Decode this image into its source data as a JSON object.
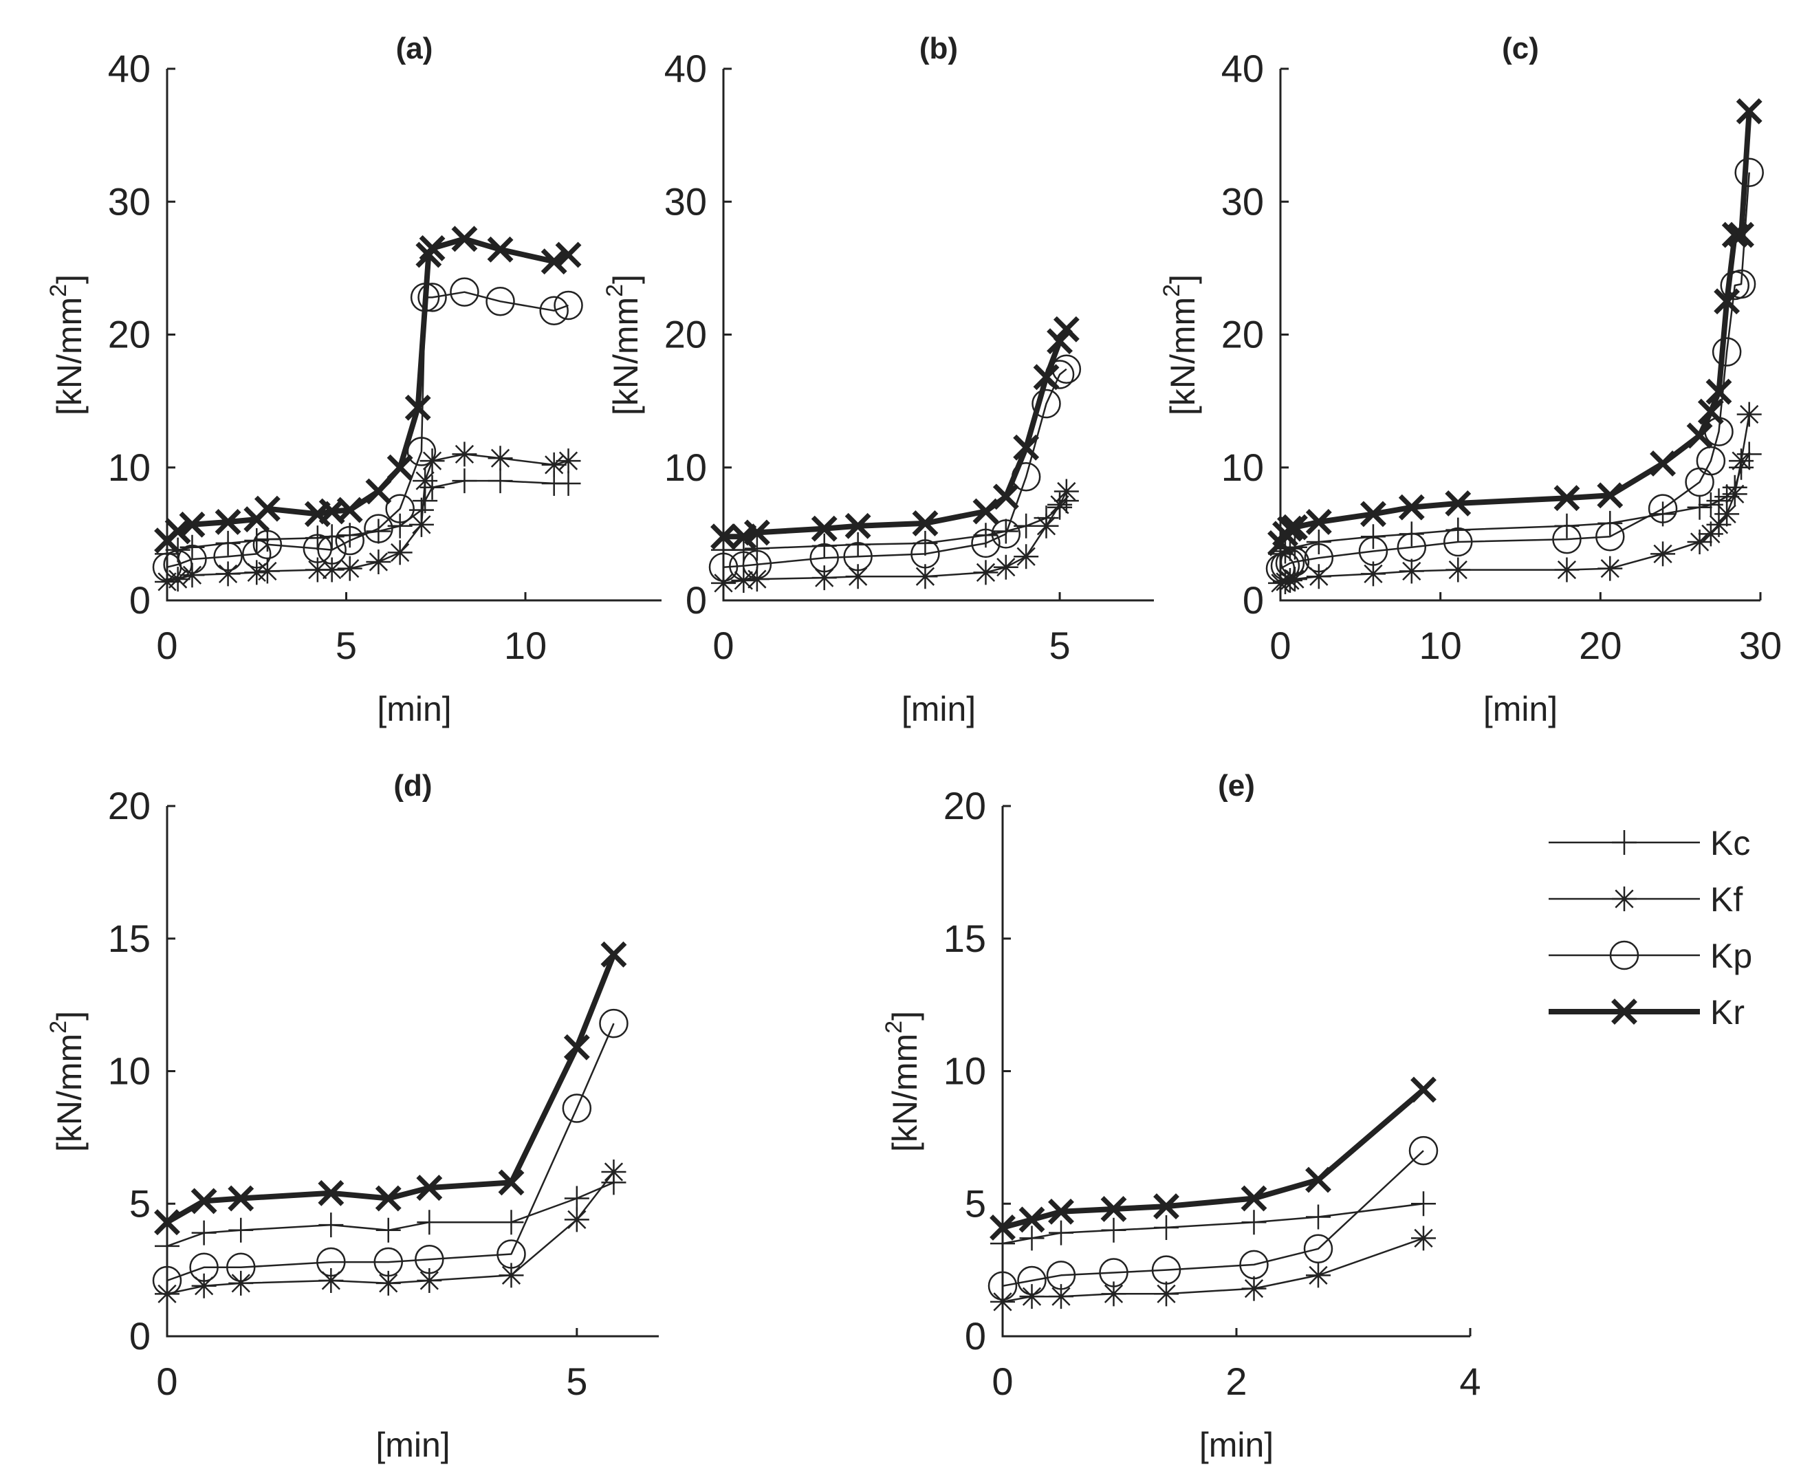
{
  "legend": {
    "position": "right of panel (e)",
    "entries": [
      {
        "key": "Kc",
        "label": "Kc",
        "marker": "plus",
        "line": "thin"
      },
      {
        "key": "Kf",
        "label": "Kf",
        "marker": "asterisk",
        "line": "thin"
      },
      {
        "key": "Kp",
        "label": "Kp",
        "marker": "circle",
        "line": "thin"
      },
      {
        "key": "Kr",
        "label": "Kr",
        "marker": "x",
        "line": "thick"
      }
    ]
  },
  "chart_data": [
    {
      "type": "line",
      "title": "(a)",
      "xlabel": "[min]",
      "ylabel": "[kN/mm",
      "ylabel_superscript": "2",
      "ylabel_close": "]",
      "xlim": [
        0,
        13.8
      ],
      "ylim": [
        0,
        40
      ],
      "xticks": [
        0,
        5,
        10
      ],
      "yticks": [
        0,
        10,
        20,
        30,
        40
      ],
      "grid": false,
      "series": [
        {
          "key": "Kc",
          "x": [
            0,
            0.3,
            0.7,
            1.7,
            2.5,
            2.8,
            4.2,
            4.6,
            5.1,
            5.9,
            6.5,
            7.1,
            7.2,
            7.4,
            8.3,
            9.3,
            10.8,
            11.2
          ],
          "y": [
            3.5,
            3.8,
            4.0,
            4.3,
            4.5,
            4.6,
            4.7,
            4.8,
            4.9,
            5.2,
            5.6,
            6.8,
            7.5,
            8.5,
            9.0,
            9.0,
            8.8,
            8.8
          ]
        },
        {
          "key": "Kf",
          "x": [
            0,
            0.3,
            0.7,
            1.7,
            2.5,
            2.8,
            4.2,
            4.6,
            5.1,
            5.9,
            6.5,
            7.1,
            7.2,
            7.4,
            8.3,
            9.3,
            10.8,
            11.2
          ],
          "y": [
            1.4,
            1.6,
            1.9,
            2.0,
            2.1,
            2.2,
            2.3,
            2.3,
            2.4,
            2.9,
            3.6,
            5.7,
            9.0,
            10.5,
            11.0,
            10.7,
            10.2,
            10.5
          ]
        },
        {
          "key": "Kp",
          "x": [
            0,
            0.3,
            0.7,
            1.7,
            2.5,
            2.8,
            4.2,
            4.6,
            5.1,
            5.9,
            6.5,
            7.1,
            7.2,
            7.4,
            8.3,
            9.3,
            10.8,
            11.2
          ],
          "y": [
            2.5,
            2.7,
            3.1,
            3.3,
            3.5,
            4.2,
            3.9,
            3.8,
            4.5,
            5.4,
            6.9,
            11.2,
            22.8,
            22.8,
            23.2,
            22.5,
            21.8,
            22.2
          ]
        },
        {
          "key": "Kr",
          "x": [
            0,
            0.3,
            0.7,
            1.7,
            2.5,
            2.8,
            4.2,
            4.6,
            5.1,
            5.9,
            6.5,
            7.0,
            7.3,
            7.4,
            8.3,
            9.3,
            10.8,
            11.2
          ],
          "y": [
            4.5,
            5.2,
            5.7,
            5.9,
            6.1,
            6.9,
            6.5,
            6.7,
            6.8,
            8.2,
            10.0,
            14.5,
            26.0,
            26.5,
            27.2,
            26.4,
            25.5,
            26.0
          ]
        }
      ]
    },
    {
      "type": "line",
      "title": "(b)",
      "xlabel": "[min]",
      "ylabel": "[kN/mm",
      "ylabel_superscript": "2",
      "ylabel_close": "]",
      "xlim": [
        0,
        6.4
      ],
      "ylim": [
        0,
        40
      ],
      "xticks": [
        0,
        5
      ],
      "yticks": [
        0,
        10,
        20,
        30,
        40
      ],
      "grid": false,
      "series": [
        {
          "key": "Kc",
          "x": [
            0,
            0.3,
            0.5,
            1.5,
            2.0,
            3.0,
            3.9,
            4.2,
            4.5,
            4.8,
            5.0,
            5.1
          ],
          "y": [
            3.8,
            3.8,
            3.9,
            4.1,
            4.2,
            4.3,
            4.9,
            5.2,
            5.6,
            6.2,
            7.0,
            7.5
          ]
        },
        {
          "key": "Kf",
          "x": [
            0,
            0.3,
            0.5,
            1.5,
            2.0,
            3.0,
            3.9,
            4.2,
            4.5,
            4.8,
            5.0,
            5.1
          ],
          "y": [
            1.3,
            1.5,
            1.6,
            1.7,
            1.8,
            1.8,
            2.1,
            2.5,
            3.3,
            5.6,
            7.2,
            8.2
          ]
        },
        {
          "key": "Kp",
          "x": [
            0,
            0.3,
            0.5,
            1.5,
            2.0,
            3.0,
            3.9,
            4.2,
            4.5,
            4.8,
            5.0,
            5.1
          ],
          "y": [
            2.5,
            2.6,
            2.7,
            3.2,
            3.3,
            3.5,
            4.3,
            5.0,
            9.3,
            14.8,
            17.0,
            17.4
          ]
        },
        {
          "key": "Kr",
          "x": [
            0,
            0.3,
            0.5,
            1.5,
            2.0,
            3.0,
            3.9,
            4.2,
            4.5,
            4.8,
            5.0,
            5.1
          ],
          "y": [
            4.8,
            4.8,
            5.1,
            5.4,
            5.6,
            5.8,
            6.7,
            7.8,
            11.5,
            16.8,
            19.5,
            20.4
          ]
        }
      ]
    },
    {
      "type": "line",
      "title": "(c)",
      "xlabel": "[min]",
      "ylabel": "[kN/mm",
      "ylabel_superscript": "2",
      "ylabel_close": "]",
      "xlim": [
        0,
        30
      ],
      "ylim": [
        0,
        40
      ],
      "xticks": [
        0,
        10,
        20,
        30
      ],
      "yticks": [
        0,
        10,
        20,
        30,
        40
      ],
      "grid": false,
      "series": [
        {
          "key": "Kc",
          "x": [
            0,
            0.3,
            0.6,
            0.9,
            2.4,
            5.8,
            8.2,
            11.1,
            17.9,
            20.6,
            23.9,
            26.2,
            26.9,
            27.4,
            27.9,
            28.4,
            28.8,
            29.3
          ],
          "y": [
            3.5,
            3.7,
            3.9,
            4.0,
            4.4,
            4.8,
            5.0,
            5.3,
            5.6,
            5.8,
            6.5,
            7.0,
            7.2,
            7.5,
            7.8,
            8.5,
            10.0,
            11.0
          ]
        },
        {
          "key": "Kf",
          "x": [
            0,
            0.3,
            0.6,
            0.9,
            2.4,
            5.8,
            8.2,
            11.1,
            17.9,
            20.6,
            23.9,
            26.2,
            26.9,
            27.4,
            27.9,
            28.4,
            28.8,
            29.3
          ],
          "y": [
            1.3,
            1.4,
            1.5,
            1.6,
            1.8,
            2.0,
            2.2,
            2.3,
            2.3,
            2.4,
            3.5,
            4.4,
            5.0,
            5.7,
            6.5,
            8.0,
            10.5,
            14.0
          ]
        },
        {
          "key": "Kp",
          "x": [
            0,
            0.3,
            0.6,
            0.9,
            2.4,
            5.8,
            8.2,
            11.1,
            17.9,
            20.6,
            23.9,
            26.2,
            26.9,
            27.4,
            27.9,
            28.4,
            28.8,
            29.3
          ],
          "y": [
            2.4,
            2.6,
            2.8,
            2.9,
            3.2,
            3.7,
            4.0,
            4.4,
            4.6,
            4.8,
            6.9,
            8.9,
            10.5,
            12.7,
            18.7,
            23.7,
            23.8,
            32.2
          ]
        },
        {
          "key": "Kr",
          "x": [
            0,
            0.3,
            0.6,
            0.9,
            2.4,
            5.8,
            8.2,
            11.1,
            17.9,
            20.6,
            23.9,
            26.2,
            26.9,
            27.4,
            27.9,
            28.4,
            28.8,
            29.3
          ],
          "y": [
            4.3,
            5.0,
            5.4,
            5.5,
            5.9,
            6.5,
            7.0,
            7.3,
            7.7,
            7.9,
            10.3,
            12.4,
            14.2,
            15.7,
            22.5,
            27.5,
            27.5,
            36.8
          ]
        }
      ]
    },
    {
      "type": "line",
      "title": "(d)",
      "xlabel": "[min]",
      "ylabel": "[kN/mm",
      "ylabel_superscript": "2",
      "ylabel_close": "]",
      "xlim": [
        0,
        6
      ],
      "ylim": [
        0,
        20
      ],
      "xticks": [
        0,
        5
      ],
      "yticks": [
        0,
        5,
        10,
        15,
        20
      ],
      "grid": false,
      "series": [
        {
          "key": "Kc",
          "x": [
            0,
            0.45,
            0.9,
            2.0,
            2.7,
            3.2,
            4.2,
            5.0,
            5.45
          ],
          "y": [
            3.4,
            3.9,
            4.0,
            4.2,
            4.0,
            4.3,
            4.3,
            5.2,
            5.8
          ]
        },
        {
          "key": "Kf",
          "x": [
            0,
            0.45,
            0.9,
            2.0,
            2.7,
            3.2,
            4.2,
            5.0,
            5.45
          ],
          "y": [
            1.6,
            1.9,
            2.0,
            2.1,
            2.0,
            2.1,
            2.3,
            4.4,
            6.2
          ]
        },
        {
          "key": "Kp",
          "x": [
            0,
            0.45,
            0.9,
            2.0,
            2.7,
            3.2,
            4.2,
            5.0,
            5.45
          ],
          "y": [
            2.1,
            2.6,
            2.6,
            2.8,
            2.8,
            2.9,
            3.1,
            8.6,
            11.8
          ]
        },
        {
          "key": "Kr",
          "x": [
            0,
            0.45,
            0.9,
            2.0,
            2.7,
            3.2,
            4.2,
            5.0,
            5.45
          ],
          "y": [
            4.3,
            5.1,
            5.2,
            5.4,
            5.2,
            5.6,
            5.8,
            10.9,
            14.4
          ]
        }
      ]
    },
    {
      "type": "line",
      "title": "(e)",
      "xlabel": "[min]",
      "ylabel": "[kN/mm",
      "ylabel_superscript": "2",
      "ylabel_close": "]",
      "xlim": [
        0,
        4
      ],
      "ylim": [
        0,
        20
      ],
      "xticks": [
        0,
        2,
        4
      ],
      "yticks": [
        0,
        5,
        10,
        15,
        20
      ],
      "grid": false,
      "series": [
        {
          "key": "Kc",
          "x": [
            0,
            0.25,
            0.5,
            0.95,
            1.4,
            2.15,
            2.7,
            3.6
          ],
          "y": [
            3.5,
            3.7,
            3.9,
            4.0,
            4.1,
            4.3,
            4.5,
            5.0
          ]
        },
        {
          "key": "Kf",
          "x": [
            0,
            0.25,
            0.5,
            0.95,
            1.4,
            2.15,
            2.7,
            3.6
          ],
          "y": [
            1.3,
            1.5,
            1.5,
            1.6,
            1.6,
            1.8,
            2.3,
            3.7
          ]
        },
        {
          "key": "Kp",
          "x": [
            0,
            0.25,
            0.5,
            0.95,
            1.4,
            2.15,
            2.7,
            3.6
          ],
          "y": [
            1.9,
            2.1,
            2.3,
            2.4,
            2.5,
            2.7,
            3.3,
            7.0
          ]
        },
        {
          "key": "Kr",
          "x": [
            0,
            0.25,
            0.5,
            0.95,
            1.4,
            2.15,
            2.7,
            3.6
          ],
          "y": [
            4.1,
            4.4,
            4.7,
            4.8,
            4.9,
            5.2,
            5.9,
            9.3
          ]
        }
      ]
    }
  ]
}
